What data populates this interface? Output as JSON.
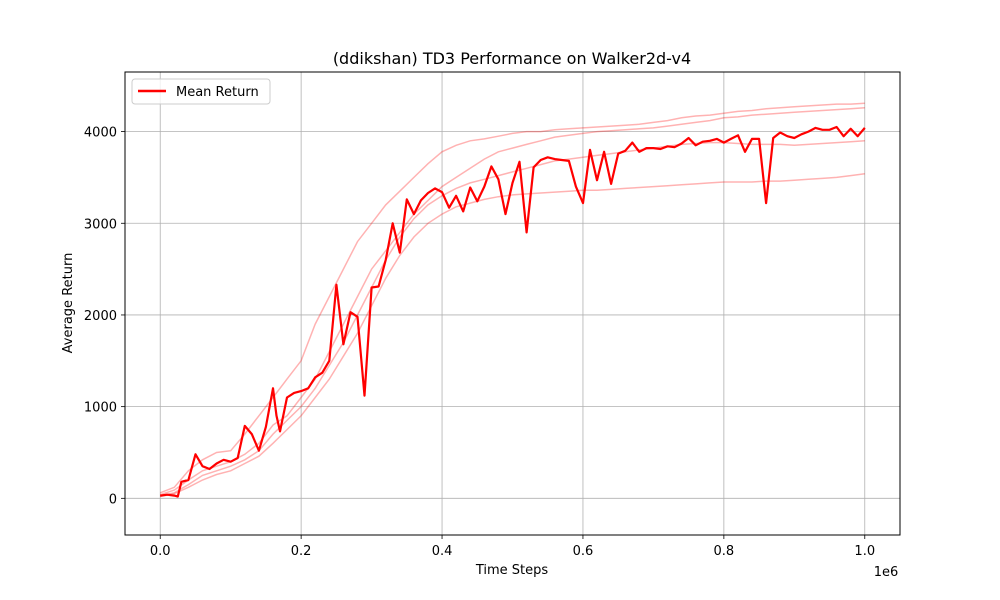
{
  "chart_data": {
    "type": "line",
    "title": "(ddikshan) TD3 Performance on Walker2d-v4",
    "xlabel": "Time Steps",
    "ylabel": "Average Return",
    "x_offset_label": "1e6",
    "xlim": [
      -0.05,
      1.05
    ],
    "ylim": [
      -400,
      4650
    ],
    "xticks": [
      0.0,
      0.2,
      0.4,
      0.6,
      0.8,
      1.0
    ],
    "xtick_labels": [
      "0.0",
      "0.2",
      "0.4",
      "0.6",
      "0.8",
      "1.0"
    ],
    "yticks": [
      0,
      1000,
      2000,
      3000,
      4000
    ],
    "ytick_labels": [
      "0",
      "1000",
      "2000",
      "3000",
      "4000"
    ],
    "grid": true,
    "legend_position": "upper-left",
    "colors": {
      "mean": "#ff0000",
      "run": "#ff0000"
    },
    "series": [
      {
        "name": "Mean Return",
        "x": [
          0.0,
          0.01,
          0.02,
          0.025,
          0.03,
          0.04,
          0.05,
          0.06,
          0.07,
          0.08,
          0.09,
          0.1,
          0.11,
          0.12,
          0.13,
          0.14,
          0.15,
          0.16,
          0.165,
          0.17,
          0.18,
          0.19,
          0.2,
          0.21,
          0.22,
          0.23,
          0.24,
          0.25,
          0.26,
          0.27,
          0.28,
          0.29,
          0.3,
          0.31,
          0.32,
          0.33,
          0.34,
          0.35,
          0.36,
          0.37,
          0.38,
          0.39,
          0.4,
          0.41,
          0.42,
          0.43,
          0.44,
          0.45,
          0.46,
          0.47,
          0.48,
          0.49,
          0.5,
          0.51,
          0.52,
          0.53,
          0.54,
          0.55,
          0.56,
          0.57,
          0.58,
          0.59,
          0.6,
          0.61,
          0.62,
          0.63,
          0.64,
          0.65,
          0.66,
          0.67,
          0.68,
          0.69,
          0.7,
          0.71,
          0.72,
          0.73,
          0.74,
          0.75,
          0.76,
          0.77,
          0.78,
          0.79,
          0.8,
          0.81,
          0.82,
          0.83,
          0.84,
          0.85,
          0.86,
          0.87,
          0.88,
          0.89,
          0.9,
          0.91,
          0.92,
          0.93,
          0.94,
          0.95,
          0.96,
          0.97,
          0.98,
          0.99,
          1.0
        ],
        "y": [
          30,
          40,
          30,
          20,
          180,
          200,
          480,
          350,
          320,
          380,
          420,
          400,
          440,
          790,
          700,
          520,
          780,
          1200,
          900,
          730,
          1100,
          1150,
          1170,
          1200,
          1320,
          1370,
          1500,
          2330,
          1680,
          2030,
          1980,
          1120,
          2300,
          2310,
          2600,
          3000,
          2680,
          3260,
          3100,
          3250,
          3330,
          3380,
          3340,
          3170,
          3300,
          3130,
          3390,
          3240,
          3400,
          3620,
          3480,
          3100,
          3440,
          3670,
          2900,
          3610,
          3690,
          3720,
          3700,
          3690,
          3680,
          3400,
          3220,
          3800,
          3470,
          3780,
          3430,
          3760,
          3790,
          3880,
          3780,
          3820,
          3820,
          3810,
          3840,
          3830,
          3870,
          3930,
          3850,
          3890,
          3900,
          3920,
          3880,
          3920,
          3960,
          3780,
          3920,
          3920,
          3220,
          3930,
          3990,
          3950,
          3930,
          3970,
          4000,
          4040,
          4020,
          4020,
          4050,
          3950,
          4030,
          3950,
          4040
        ]
      }
    ],
    "individual_runs": [
      {
        "x": [
          0.0,
          0.02,
          0.04,
          0.06,
          0.08,
          0.1,
          0.12,
          0.14,
          0.16,
          0.18,
          0.2,
          0.22,
          0.24,
          0.26,
          0.28,
          0.3,
          0.32,
          0.34,
          0.36,
          0.38,
          0.4,
          0.42,
          0.44,
          0.46,
          0.48,
          0.5,
          0.52,
          0.54,
          0.56,
          0.58,
          0.6,
          0.62,
          0.64,
          0.66,
          0.68,
          0.7,
          0.72,
          0.74,
          0.76,
          0.78,
          0.8,
          0.82,
          0.84,
          0.86,
          0.88,
          0.9,
          0.92,
          0.94,
          0.96,
          0.98,
          1.0
        ],
        "y": [
          60,
          120,
          300,
          420,
          500,
          520,
          700,
          900,
          1100,
          1300,
          1500,
          1900,
          2200,
          2500,
          2800,
          3000,
          3200,
          3350,
          3500,
          3650,
          3780,
          3850,
          3900,
          3920,
          3950,
          3980,
          4000,
          4000,
          4020,
          4030,
          4040,
          4050,
          4060,
          4070,
          4080,
          4100,
          4120,
          4150,
          4170,
          4180,
          4200,
          4220,
          4230,
          4250,
          4260,
          4270,
          4280,
          4290,
          4300,
          4300,
          4310
        ]
      },
      {
        "x": [
          0.0,
          0.02,
          0.04,
          0.06,
          0.08,
          0.1,
          0.12,
          0.14,
          0.16,
          0.18,
          0.2,
          0.22,
          0.24,
          0.26,
          0.28,
          0.3,
          0.32,
          0.34,
          0.36,
          0.38,
          0.4,
          0.42,
          0.44,
          0.46,
          0.48,
          0.5,
          0.52,
          0.54,
          0.56,
          0.58,
          0.6,
          0.62,
          0.64,
          0.66,
          0.68,
          0.7,
          0.72,
          0.74,
          0.76,
          0.78,
          0.8,
          0.82,
          0.84,
          0.86,
          0.88,
          0.9,
          0.92,
          0.94,
          0.96,
          0.98,
          1.0
        ],
        "y": [
          40,
          90,
          200,
          300,
          350,
          400,
          480,
          600,
          800,
          900,
          1100,
          1300,
          1600,
          1900,
          2200,
          2500,
          2700,
          2900,
          3100,
          3250,
          3400,
          3500,
          3600,
          3700,
          3780,
          3820,
          3860,
          3900,
          3940,
          3960,
          3980,
          4000,
          4010,
          4020,
          4030,
          4040,
          4060,
          4080,
          4100,
          4120,
          4150,
          4160,
          4180,
          4190,
          4200,
          4210,
          4220,
          4230,
          4240,
          4250,
          4260
        ]
      },
      {
        "x": [
          0.0,
          0.02,
          0.04,
          0.06,
          0.08,
          0.1,
          0.12,
          0.14,
          0.16,
          0.18,
          0.2,
          0.22,
          0.24,
          0.26,
          0.28,
          0.3,
          0.32,
          0.34,
          0.36,
          0.38,
          0.4,
          0.42,
          0.44,
          0.46,
          0.48,
          0.5,
          0.52,
          0.54,
          0.56,
          0.58,
          0.6,
          0.62,
          0.64,
          0.66,
          0.68,
          0.7,
          0.72,
          0.74,
          0.76,
          0.78,
          0.8,
          0.82,
          0.84,
          0.86,
          0.88,
          0.9,
          0.92,
          0.94,
          0.96,
          0.98,
          1.0
        ],
        "y": [
          30,
          60,
          150,
          250,
          300,
          350,
          420,
          520,
          700,
          850,
          1000,
          1200,
          1450,
          1700,
          2000,
          2300,
          2600,
          2850,
          3050,
          3200,
          3300,
          3380,
          3440,
          3480,
          3520,
          3560,
          3600,
          3640,
          3680,
          3700,
          3720,
          3740,
          3760,
          3780,
          3800,
          3820,
          3840,
          3860,
          3870,
          3880,
          3880,
          3870,
          3860,
          3860,
          3860,
          3850,
          3860,
          3870,
          3880,
          3890,
          3900
        ]
      },
      {
        "x": [
          0.0,
          0.02,
          0.04,
          0.06,
          0.08,
          0.1,
          0.12,
          0.14,
          0.16,
          0.18,
          0.2,
          0.22,
          0.24,
          0.26,
          0.28,
          0.3,
          0.32,
          0.34,
          0.36,
          0.38,
          0.4,
          0.42,
          0.44,
          0.46,
          0.48,
          0.5,
          0.52,
          0.54,
          0.56,
          0.58,
          0.6,
          0.62,
          0.64,
          0.66,
          0.68,
          0.7,
          0.72,
          0.74,
          0.76,
          0.78,
          0.8,
          0.82,
          0.84,
          0.86,
          0.88,
          0.9,
          0.92,
          0.94,
          0.96,
          0.98,
          1.0
        ],
        "y": [
          20,
          50,
          120,
          200,
          260,
          300,
          380,
          460,
          600,
          750,
          900,
          1100,
          1300,
          1550,
          1800,
          2100,
          2400,
          2650,
          2850,
          3000,
          3100,
          3180,
          3220,
          3260,
          3290,
          3310,
          3320,
          3330,
          3340,
          3350,
          3360,
          3360,
          3370,
          3380,
          3390,
          3400,
          3410,
          3420,
          3430,
          3440,
          3450,
          3450,
          3450,
          3460,
          3460,
          3470,
          3480,
          3490,
          3500,
          3520,
          3540
        ]
      }
    ]
  }
}
